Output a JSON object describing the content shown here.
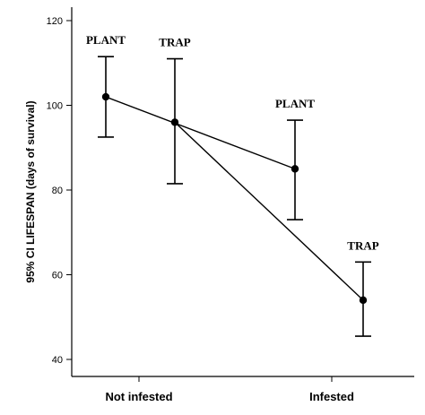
{
  "chart_data": {
    "type": "line",
    "title": "",
    "ylabel": "95% CI LIFESPAN (days of survival)",
    "xlabel": "",
    "categories": [
      "Not infested",
      "Infested"
    ],
    "ylim": [
      40,
      120
    ],
    "yticks": [
      40,
      60,
      80,
      100,
      120
    ],
    "grid": false,
    "series": [
      {
        "name": "PLANT",
        "x": [
          0.0,
          1.0
        ],
        "values": [
          102,
          85
        ],
        "ci_low": [
          92.5,
          73
        ],
        "ci_high": [
          111.5,
          96.5
        ],
        "point_labels": [
          "PLANT",
          "PLANT"
        ]
      },
      {
        "name": "TRAP",
        "x": [
          0.17,
          1.17
        ],
        "values": [
          96,
          54
        ],
        "ci_low": [
          81.5,
          45.5
        ],
        "ci_high": [
          111,
          63
        ],
        "point_labels": [
          "TRAP",
          "TRAP"
        ]
      }
    ]
  }
}
